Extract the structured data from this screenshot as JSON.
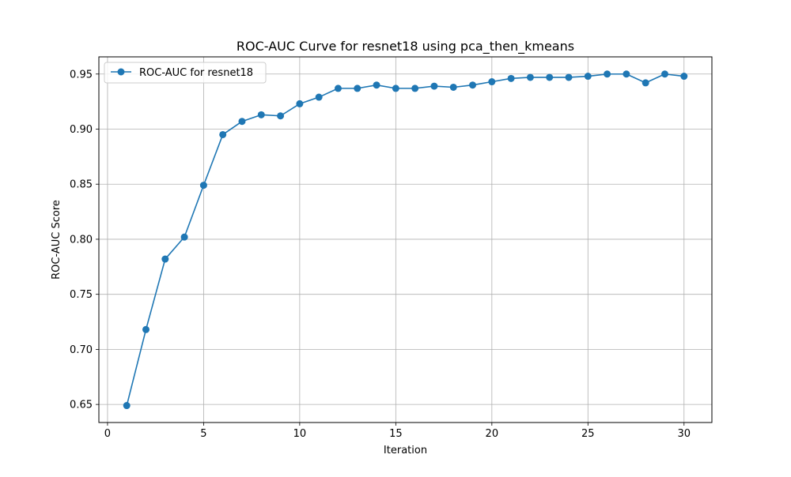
{
  "chart_data": {
    "type": "line",
    "title": "ROC-AUC Curve for resnet18 using pca_then_kmeans",
    "xlabel": "Iteration",
    "ylabel": "ROC-AUC Score",
    "xlim": [
      -0.45,
      31.45
    ],
    "ylim": [
      0.6336,
      0.9656
    ],
    "xticks": [
      0,
      5,
      10,
      15,
      20,
      25,
      30
    ],
    "yticks": [
      0.65,
      0.7,
      0.75,
      0.8,
      0.85,
      0.9,
      0.95
    ],
    "xtick_labels": [
      "0",
      "5",
      "10",
      "15",
      "20",
      "25",
      "30"
    ],
    "ytick_labels": [
      "0.65",
      "0.70",
      "0.75",
      "0.80",
      "0.85",
      "0.90",
      "0.95"
    ],
    "grid": true,
    "legend_position": "top-left",
    "color": "#1f77b4",
    "series": [
      {
        "name": "ROC-AUC for resnet18",
        "x": [
          1,
          2,
          3,
          4,
          5,
          6,
          7,
          8,
          9,
          10,
          11,
          12,
          13,
          14,
          15,
          16,
          17,
          18,
          19,
          20,
          21,
          22,
          23,
          24,
          25,
          26,
          27,
          28,
          29,
          30
        ],
        "y": [
          0.649,
          0.718,
          0.782,
          0.802,
          0.849,
          0.895,
          0.907,
          0.913,
          0.912,
          0.923,
          0.929,
          0.937,
          0.937,
          0.94,
          0.937,
          0.937,
          0.939,
          0.938,
          0.94,
          0.943,
          0.946,
          0.947,
          0.947,
          0.947,
          0.948,
          0.95,
          0.95,
          0.942,
          0.95,
          0.948
        ]
      }
    ]
  }
}
